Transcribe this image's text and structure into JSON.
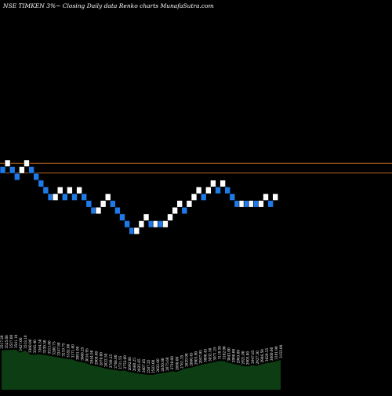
{
  "header": {
    "title": "NSE TIMKEN  3%~  Closing Daily data  Renko  charts MunafaSutra.com"
  },
  "colors": {
    "background": "#000000",
    "up_brick": "#ffffff",
    "down_brick": "#1e7ae6",
    "brick_edge": "#000000",
    "level_line": "#b4641e",
    "volume_fill": "#0d3d12",
    "volume_label": "#ffffff"
  },
  "chart_data": {
    "type": "renko",
    "brick_size": "3%",
    "levels": [
      3435,
      3290
    ],
    "bricks": [
      {
        "dir": "down",
        "top": 3384.4,
        "bottom": 3283.9
      },
      {
        "dir": "up",
        "top": 3486.9,
        "bottom": 3384.4
      },
      {
        "dir": "down",
        "top": 3384.4,
        "bottom": 3283.9
      },
      {
        "dir": "down",
        "top": 3283.9,
        "bottom": 3186.4
      },
      {
        "dir": "up",
        "top": 3384.4,
        "bottom": 3283.9
      },
      {
        "dir": "up",
        "top": 3486.9,
        "bottom": 3384.4
      },
      {
        "dir": "down",
        "top": 3384.4,
        "bottom": 3283.9
      },
      {
        "dir": "down",
        "top": 3283.9,
        "bottom": 3186.4
      },
      {
        "dir": "down",
        "top": 3186.4,
        "bottom": 3091.9
      },
      {
        "dir": "down",
        "top": 3091.9,
        "bottom": 3000.1
      },
      {
        "dir": "down",
        "top": 3000.1,
        "bottom": 2911.0
      },
      {
        "dir": "up",
        "top": 3000.1,
        "bottom": 2911.0
      },
      {
        "dir": "up",
        "top": 3091.9,
        "bottom": 3000.1
      },
      {
        "dir": "down",
        "top": 3000.1,
        "bottom": 2911.0
      },
      {
        "dir": "up",
        "top": 3091.9,
        "bottom": 3000.1
      },
      {
        "dir": "down",
        "top": 3000.1,
        "bottom": 2911.0
      },
      {
        "dir": "up",
        "top": 3091.9,
        "bottom": 3000.1
      },
      {
        "dir": "down",
        "top": 3000.1,
        "bottom": 2911.0
      },
      {
        "dir": "down",
        "top": 2911.0,
        "bottom": 2824.5
      },
      {
        "dir": "down",
        "top": 2824.5,
        "bottom": 2740.6
      },
      {
        "dir": "up",
        "top": 2824.5,
        "bottom": 2740.6
      },
      {
        "dir": "up",
        "top": 2911.0,
        "bottom": 2824.5
      },
      {
        "dir": "up",
        "top": 3000.1,
        "bottom": 2911.0
      },
      {
        "dir": "down",
        "top": 2911.0,
        "bottom": 2824.5
      },
      {
        "dir": "down",
        "top": 2824.5,
        "bottom": 2740.6
      },
      {
        "dir": "down",
        "top": 2740.6,
        "bottom": 2659.2
      },
      {
        "dir": "down",
        "top": 2659.2,
        "bottom": 2580.2
      },
      {
        "dir": "down",
        "top": 2580.2,
        "bottom": 2503.6
      },
      {
        "dir": "up",
        "top": 2580.2,
        "bottom": 2503.6
      },
      {
        "dir": "up",
        "top": 2659.2,
        "bottom": 2580.2
      },
      {
        "dir": "up",
        "top": 2740.6,
        "bottom": 2659.2
      },
      {
        "dir": "down",
        "top": 2659.2,
        "bottom": 2580.2
      },
      {
        "dir": "up",
        "top": 2659.2,
        "bottom": 2580.2
      },
      {
        "dir": "down",
        "top": 2659.2,
        "bottom": 2580.2
      },
      {
        "dir": "up",
        "top": 2659.2,
        "bottom": 2580.2
      },
      {
        "dir": "up",
        "top": 2740.6,
        "bottom": 2659.2
      },
      {
        "dir": "up",
        "top": 2824.5,
        "bottom": 2740.6
      },
      {
        "dir": "up",
        "top": 2911.0,
        "bottom": 2824.5
      },
      {
        "dir": "down",
        "top": 2824.5,
        "bottom": 2740.6
      },
      {
        "dir": "up",
        "top": 2911.0,
        "bottom": 2824.5
      },
      {
        "dir": "up",
        "top": 3000.1,
        "bottom": 2911.0
      },
      {
        "dir": "up",
        "top": 3091.9,
        "bottom": 3000.1
      },
      {
        "dir": "down",
        "top": 3000.1,
        "bottom": 2911.0
      },
      {
        "dir": "up",
        "top": 3091.9,
        "bottom": 3000.1
      },
      {
        "dir": "up",
        "top": 3186.4,
        "bottom": 3091.9
      },
      {
        "dir": "down",
        "top": 3091.9,
        "bottom": 3000.1
      },
      {
        "dir": "up",
        "top": 3186.4,
        "bottom": 3091.9
      },
      {
        "dir": "down",
        "top": 3091.9,
        "bottom": 3000.1
      },
      {
        "dir": "down",
        "top": 3000.1,
        "bottom": 2911.0
      },
      {
        "dir": "down",
        "top": 2911.0,
        "bottom": 2824.5
      },
      {
        "dir": "up",
        "top": 2911.0,
        "bottom": 2824.5
      },
      {
        "dir": "down",
        "top": 2911.0,
        "bottom": 2824.5
      },
      {
        "dir": "up",
        "top": 2911.0,
        "bottom": 2824.5
      },
      {
        "dir": "down",
        "top": 2911.0,
        "bottom": 2824.5
      },
      {
        "dir": "up",
        "top": 2911.0,
        "bottom": 2824.5
      },
      {
        "dir": "up",
        "top": 3000.1,
        "bottom": 2911.0
      },
      {
        "dir": "down",
        "top": 2911.0,
        "bottom": 2824.5
      },
      {
        "dir": "up",
        "top": 3000.1,
        "bottom": 2911.0
      }
    ],
    "volume_labels": [
      "3517.20",
      "3525.00",
      "3537.00",
      "3541.10",
      "3427.00",
      "3518.10",
      "3360.00",
      "3345.40",
      "3364.50",
      "3339.50",
      "3313.60",
      "3280.75",
      "3247.80",
      "3219.75",
      "3182.00",
      "3171.00",
      "3091.00",
      "3068.25",
      "3016.95",
      "2944.00",
      "2908.00",
      "2870.00",
      "2822.50",
      "2789.25",
      "2768.00",
      "2731.55",
      "2752.00",
      "2692.00",
      "2660.25",
      "2625.65",
      "2607.85",
      "2587.25",
      "2583.00",
      "2622.60",
      "2650.00",
      "2675.60",
      "2720.00",
      "2698.00",
      "2761.35",
      "2829.90",
      "2860.45",
      "2903.90",
      "2957.95",
      "3000.45",
      "3032.50",
      "3071.25",
      "3110.50",
      "3102.90",
      "3043.00",
      "2998.00",
      "2963.00",
      "2921.00",
      "2905.80",
      "2947.85",
      "2927.50",
      "2986.50",
      "3029.55",
      "3060.00",
      "3101.90",
      "3153.00"
    ]
  }
}
